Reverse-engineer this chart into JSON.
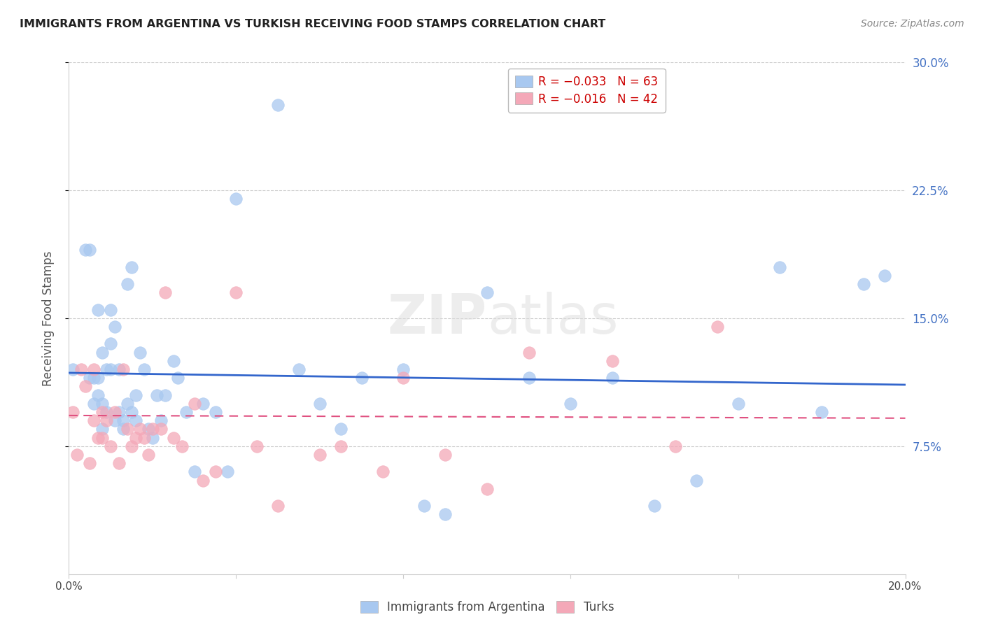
{
  "title": "IMMIGRANTS FROM ARGENTINA VS TURKISH RECEIVING FOOD STAMPS CORRELATION CHART",
  "source": "Source: ZipAtlas.com",
  "ylabel": "Receiving Food Stamps",
  "xlim": [
    0.0,
    0.2
  ],
  "ylim": [
    0.0,
    0.3
  ],
  "blue_color": "#A8C8F0",
  "pink_color": "#F4A8B8",
  "blue_line_color": "#3366CC",
  "pink_line_color": "#E05080",
  "watermark": "ZIPatlas",
  "legend_R_blue": "R = −0.033",
  "legend_N_blue": "N = 63",
  "legend_R_pink": "R = −0.016",
  "legend_N_pink": "N = 42",
  "legend_label_blue": "Immigrants from Argentina",
  "legend_label_pink": "Turks",
  "blue_x": [
    0.001,
    0.004,
    0.005,
    0.005,
    0.006,
    0.006,
    0.007,
    0.007,
    0.007,
    0.008,
    0.008,
    0.008,
    0.009,
    0.009,
    0.01,
    0.01,
    0.01,
    0.011,
    0.011,
    0.012,
    0.012,
    0.013,
    0.013,
    0.014,
    0.014,
    0.015,
    0.015,
    0.016,
    0.016,
    0.017,
    0.018,
    0.019,
    0.02,
    0.021,
    0.022,
    0.023,
    0.025,
    0.026,
    0.028,
    0.03,
    0.032,
    0.035,
    0.038,
    0.04,
    0.05,
    0.055,
    0.06,
    0.065,
    0.07,
    0.08,
    0.085,
    0.09,
    0.1,
    0.11,
    0.12,
    0.13,
    0.14,
    0.15,
    0.16,
    0.17,
    0.18,
    0.19,
    0.195
  ],
  "blue_y": [
    0.12,
    0.19,
    0.19,
    0.115,
    0.1,
    0.115,
    0.105,
    0.115,
    0.155,
    0.085,
    0.1,
    0.13,
    0.12,
    0.095,
    0.12,
    0.135,
    0.155,
    0.09,
    0.145,
    0.12,
    0.095,
    0.085,
    0.09,
    0.1,
    0.17,
    0.095,
    0.18,
    0.09,
    0.105,
    0.13,
    0.12,
    0.085,
    0.08,
    0.105,
    0.09,
    0.105,
    0.125,
    0.115,
    0.095,
    0.06,
    0.1,
    0.095,
    0.06,
    0.22,
    0.275,
    0.12,
    0.1,
    0.085,
    0.115,
    0.12,
    0.04,
    0.035,
    0.165,
    0.115,
    0.1,
    0.115,
    0.04,
    0.055,
    0.1,
    0.18,
    0.095,
    0.17,
    0.175
  ],
  "pink_x": [
    0.001,
    0.002,
    0.003,
    0.004,
    0.005,
    0.006,
    0.006,
    0.007,
    0.008,
    0.008,
    0.009,
    0.01,
    0.011,
    0.012,
    0.013,
    0.014,
    0.015,
    0.016,
    0.017,
    0.018,
    0.019,
    0.02,
    0.022,
    0.023,
    0.025,
    0.027,
    0.03,
    0.032,
    0.035,
    0.04,
    0.045,
    0.05,
    0.06,
    0.065,
    0.075,
    0.08,
    0.09,
    0.1,
    0.11,
    0.13,
    0.145,
    0.155
  ],
  "pink_y": [
    0.095,
    0.07,
    0.12,
    0.11,
    0.065,
    0.12,
    0.09,
    0.08,
    0.095,
    0.08,
    0.09,
    0.075,
    0.095,
    0.065,
    0.12,
    0.085,
    0.075,
    0.08,
    0.085,
    0.08,
    0.07,
    0.085,
    0.085,
    0.165,
    0.08,
    0.075,
    0.1,
    0.055,
    0.06,
    0.165,
    0.075,
    0.04,
    0.07,
    0.075,
    0.06,
    0.115,
    0.07,
    0.05,
    0.13,
    0.125,
    0.075,
    0.145
  ],
  "blue_intercept": 0.118,
  "blue_slope": -0.035,
  "pink_intercept": 0.093,
  "pink_slope": -0.008
}
